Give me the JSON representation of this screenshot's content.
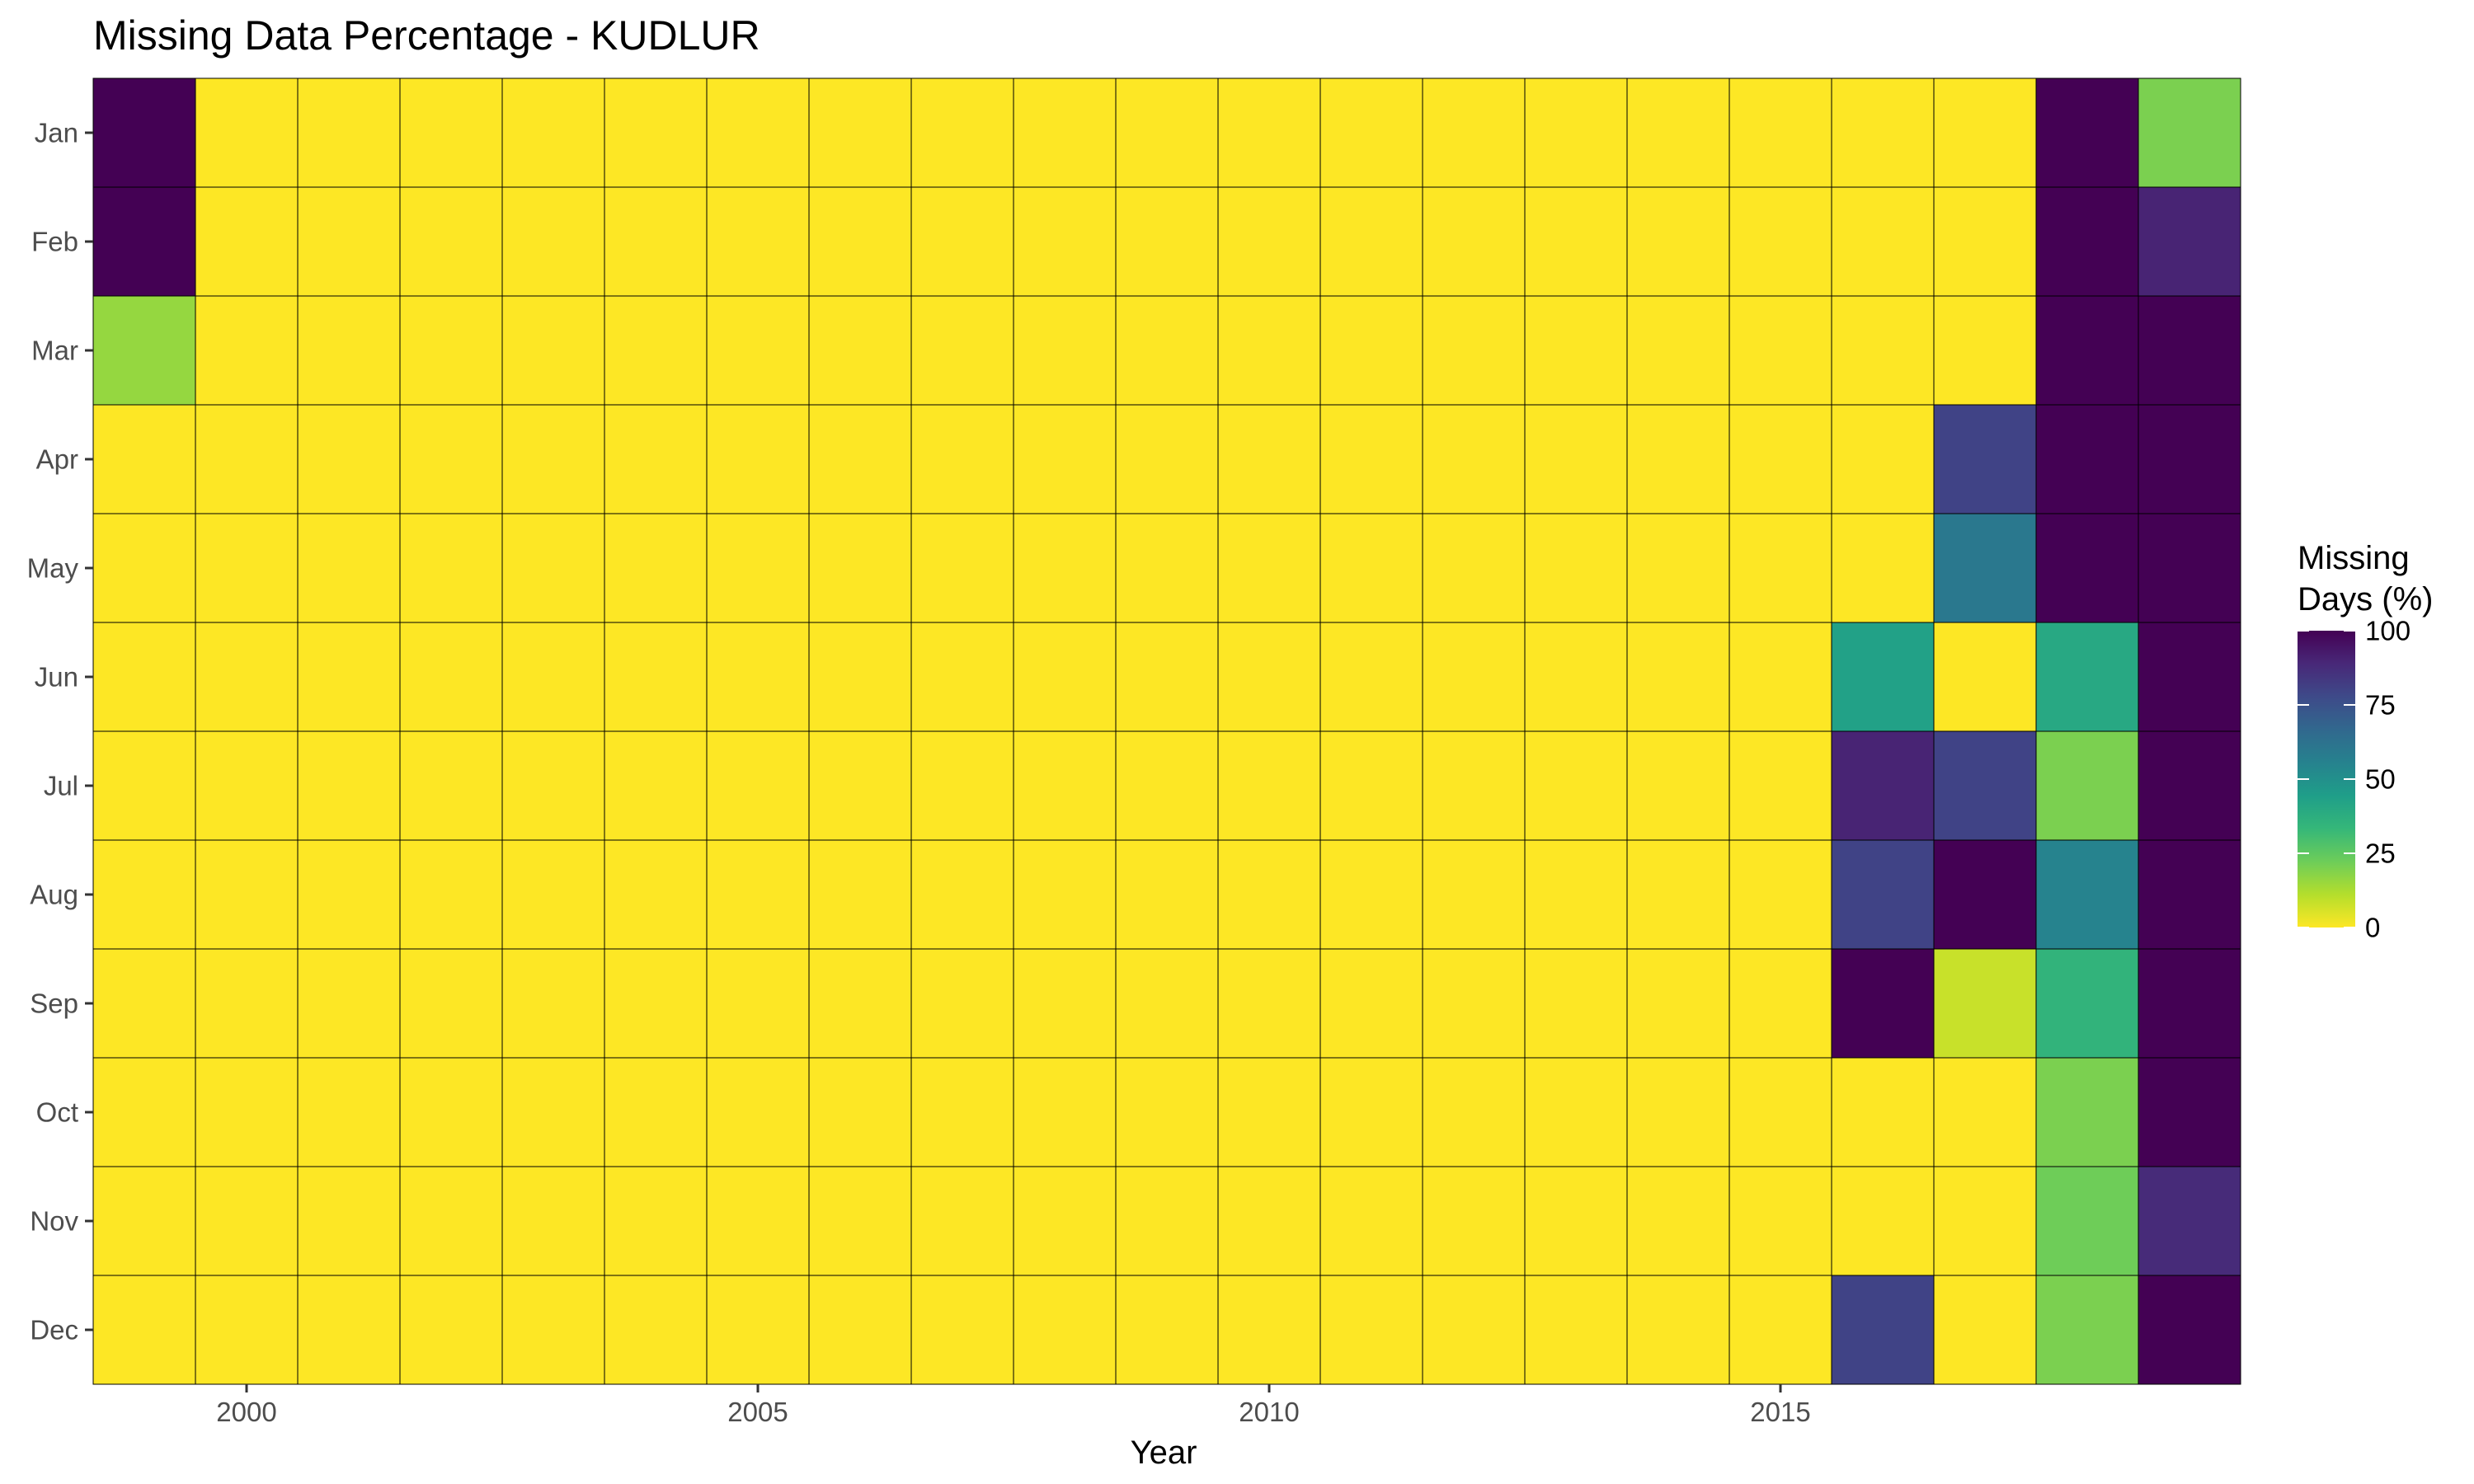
{
  "chart_data": {
    "type": "heatmap",
    "title": "Missing Data Percentage - KUDLUR",
    "xlabel": "Year",
    "ylabel": "",
    "x": [
      1999,
      2000,
      2001,
      2002,
      2003,
      2004,
      2005,
      2006,
      2007,
      2008,
      2009,
      2010,
      2011,
      2012,
      2013,
      2014,
      2015,
      2016,
      2017,
      2018,
      2019
    ],
    "y": [
      "Jan",
      "Feb",
      "Mar",
      "Apr",
      "May",
      "Jun",
      "Jul",
      "Aug",
      "Sep",
      "Oct",
      "Nov",
      "Dec"
    ],
    "x_ticks": [
      "2000",
      "2005",
      "2010",
      "2015"
    ],
    "values": [
      [
        100,
        0,
        0,
        0,
        0,
        0,
        0,
        0,
        0,
        0,
        0,
        0,
        0,
        0,
        0,
        0,
        0,
        0,
        0,
        100,
        20
      ],
      [
        100,
        0,
        0,
        0,
        0,
        0,
        0,
        0,
        0,
        0,
        0,
        0,
        0,
        0,
        0,
        0,
        0,
        0,
        0,
        100,
        90
      ],
      [
        16,
        0,
        0,
        0,
        0,
        0,
        0,
        0,
        0,
        0,
        0,
        0,
        0,
        0,
        0,
        0,
        0,
        0,
        0,
        100,
        100
      ],
      [
        0,
        0,
        0,
        0,
        0,
        0,
        0,
        0,
        0,
        0,
        0,
        0,
        0,
        0,
        0,
        0,
        0,
        0,
        80,
        100,
        100
      ],
      [
        0,
        0,
        0,
        0,
        0,
        0,
        0,
        0,
        0,
        0,
        0,
        0,
        0,
        0,
        0,
        0,
        0,
        0,
        60,
        100,
        100
      ],
      [
        0,
        0,
        0,
        0,
        0,
        0,
        0,
        0,
        0,
        0,
        0,
        0,
        0,
        0,
        0,
        0,
        0,
        43,
        0,
        40,
        100
      ],
      [
        0,
        0,
        0,
        0,
        0,
        0,
        0,
        0,
        0,
        0,
        0,
        0,
        0,
        0,
        0,
        0,
        0,
        90,
        80,
        20,
        100
      ],
      [
        0,
        0,
        0,
        0,
        0,
        0,
        0,
        0,
        0,
        0,
        0,
        0,
        0,
        0,
        0,
        0,
        0,
        80,
        100,
        55,
        100
      ],
      [
        0,
        0,
        0,
        0,
        0,
        0,
        0,
        0,
        0,
        0,
        0,
        0,
        0,
        0,
        0,
        0,
        0,
        100,
        8,
        35,
        100
      ],
      [
        0,
        0,
        0,
        0,
        0,
        0,
        0,
        0,
        0,
        0,
        0,
        0,
        0,
        0,
        0,
        0,
        0,
        0,
        0,
        20,
        100
      ],
      [
        0,
        0,
        0,
        0,
        0,
        0,
        0,
        0,
        0,
        0,
        0,
        0,
        0,
        0,
        0,
        0,
        0,
        0,
        0,
        22,
        88
      ],
      [
        0,
        0,
        0,
        0,
        0,
        0,
        0,
        0,
        0,
        0,
        0,
        0,
        0,
        0,
        0,
        0,
        0,
        80,
        0,
        20,
        100
      ]
    ],
    "colorbar": {
      "title_lines": [
        "Missing",
        "Days (%)"
      ],
      "range": [
        0,
        100
      ],
      "ticks": [
        0,
        25,
        50,
        75,
        100
      ],
      "colors_low_to_high": [
        "#FDE725",
        "#B4DE2C",
        "#6DCD59",
        "#35B779",
        "#1F9E89",
        "#26828E",
        "#31688E",
        "#3E4A89",
        "#482878",
        "#440154"
      ]
    },
    "grid": false,
    "legend_position": "right",
    "cell_border_color": "#000000"
  }
}
